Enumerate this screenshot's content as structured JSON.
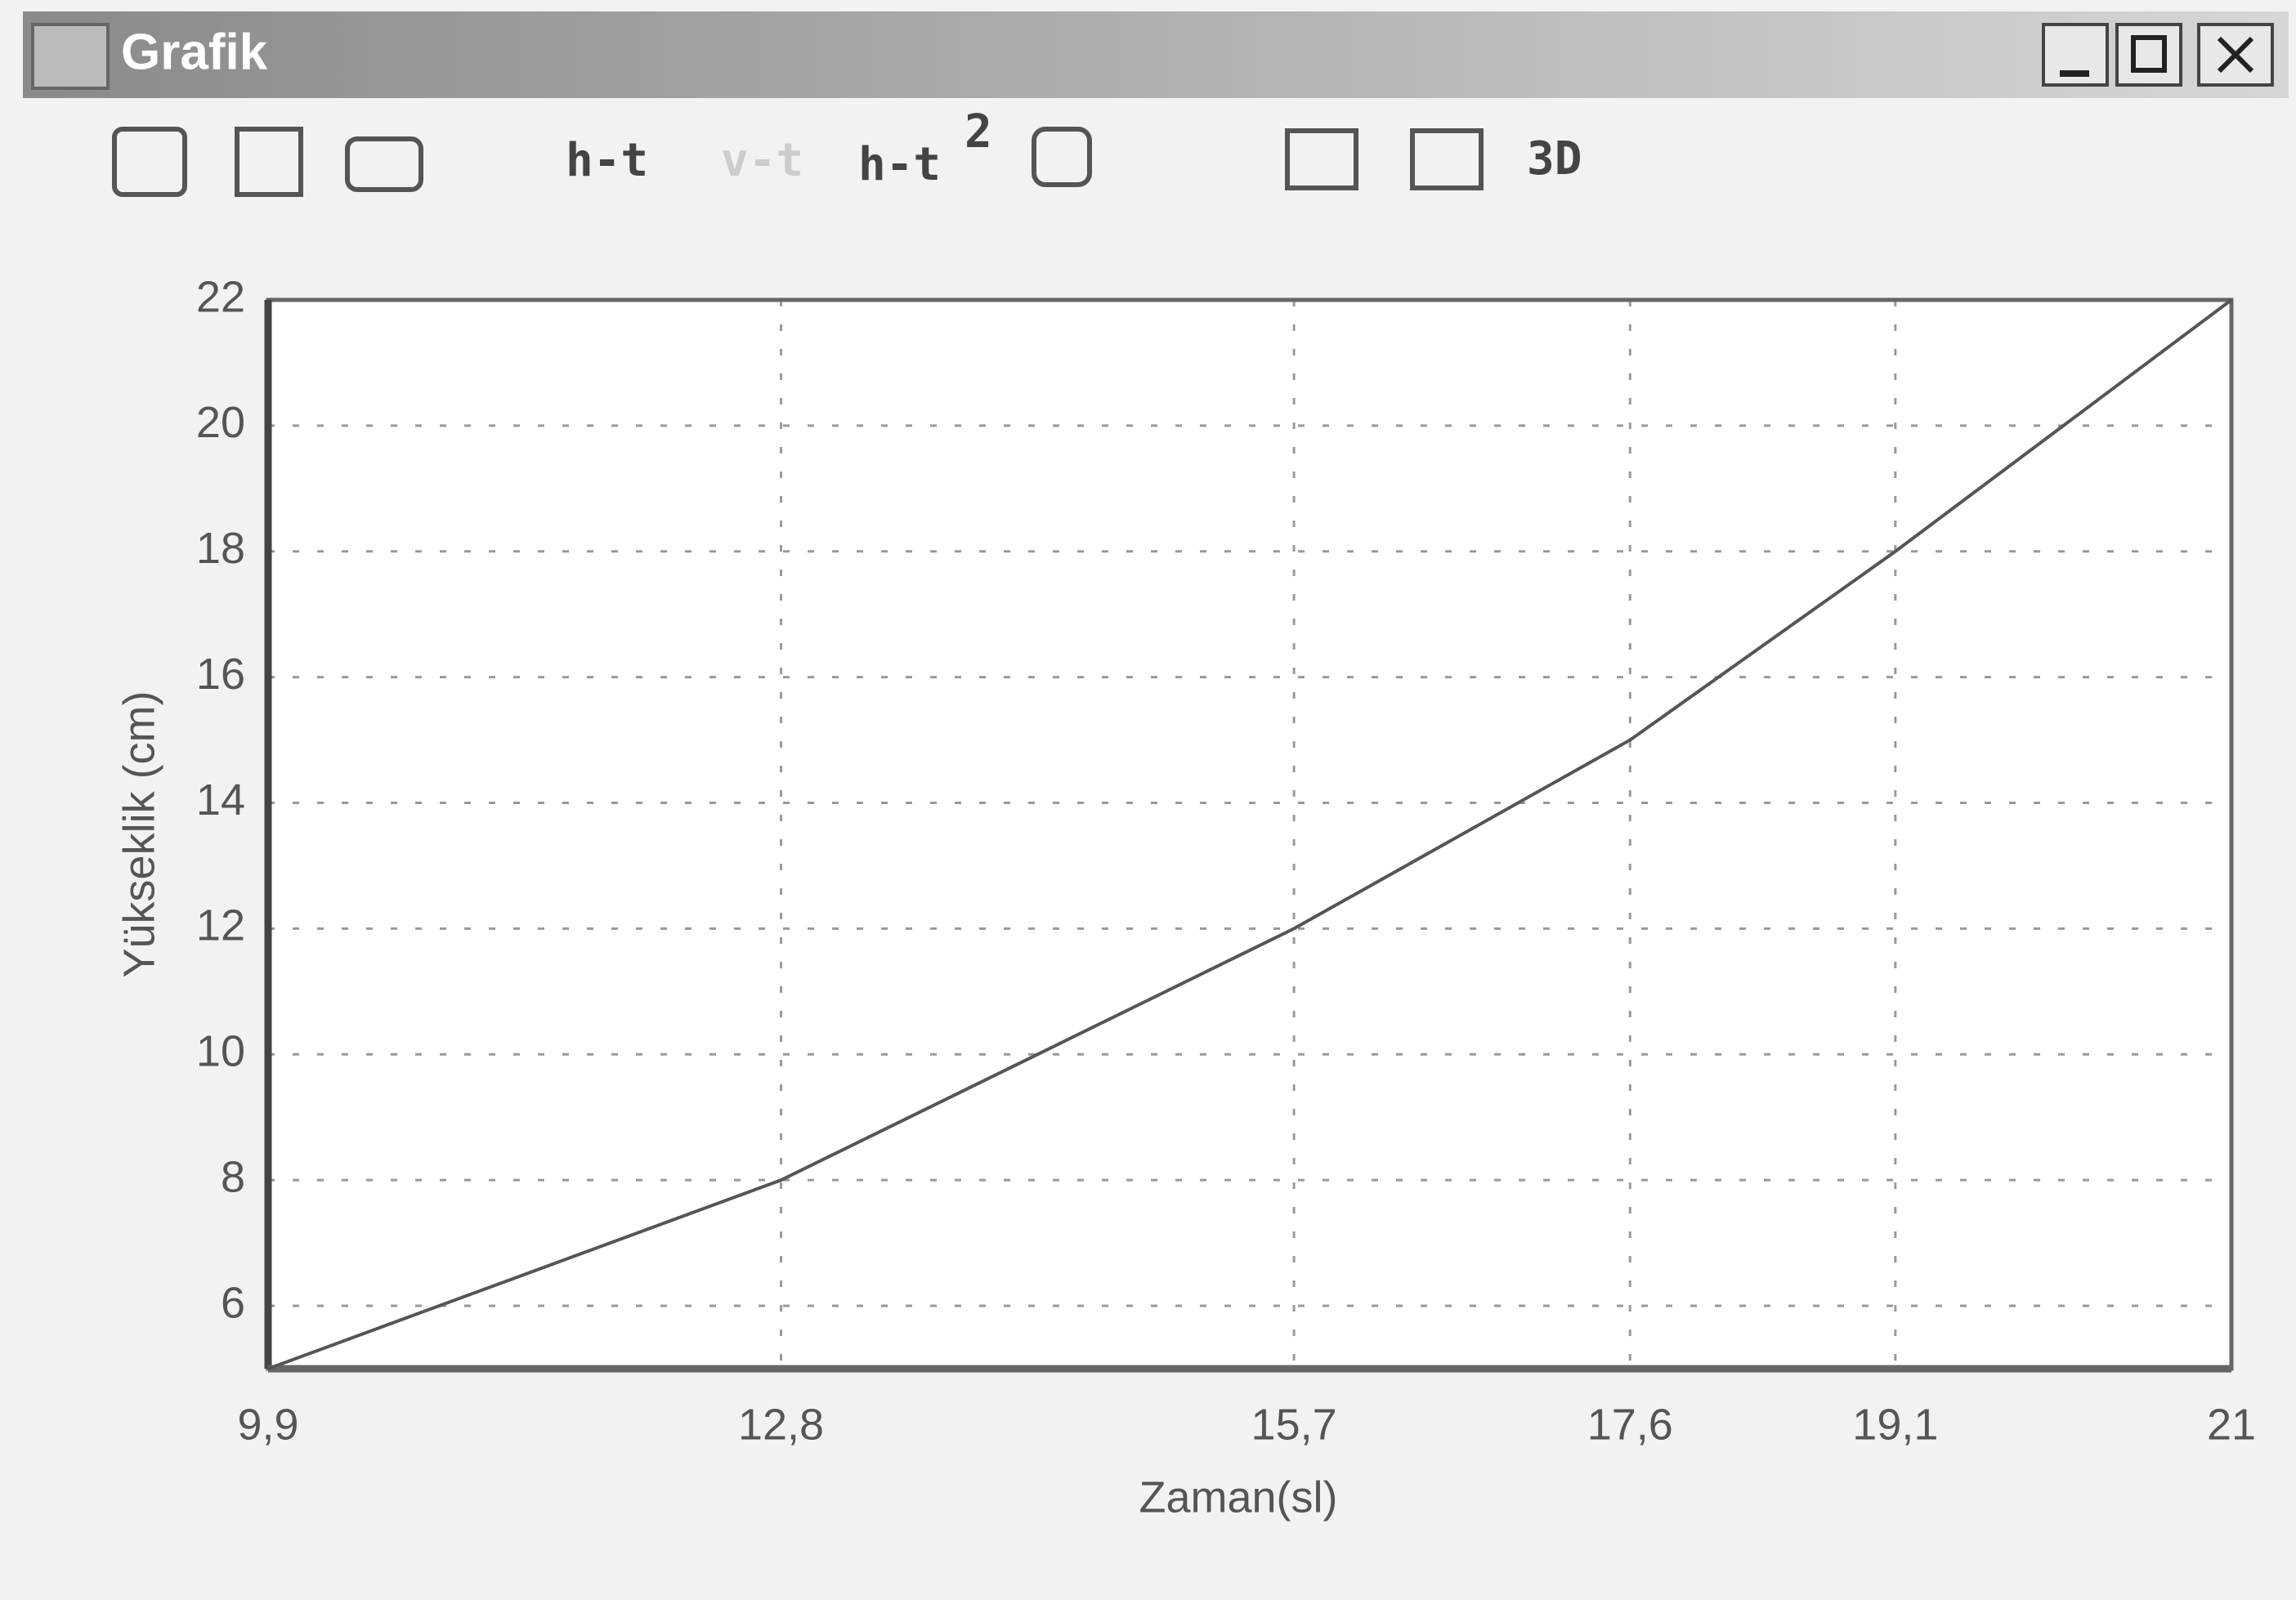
{
  "window": {
    "title": "Grafik"
  },
  "toolbar": {
    "h_t": "h-t",
    "v_t": "v-t",
    "h_t2": {
      "text": "h-t",
      "sup": "2"
    },
    "three_d": "3D"
  },
  "chart_data": {
    "type": "line",
    "x_label": "Zaman(sl)",
    "y_label": "Yükseklik (cm)",
    "x": [
      9.9,
      12.8,
      15.7,
      17.6,
      19.1,
      21
    ],
    "series": [
      {
        "color": "#555555",
        "values": [
          5,
          8,
          12,
          15,
          18,
          22
        ]
      }
    ],
    "xlim": [
      9.9,
      21
    ],
    "xticks": [
      {
        "value": 9.9,
        "label": "9,9"
      },
      {
        "value": 12.8,
        "label": "12,8"
      },
      {
        "value": 15.7,
        "label": "15,7"
      },
      {
        "value": 17.6,
        "label": "17,6"
      },
      {
        "value": 19.1,
        "label": "19,1"
      },
      21
    ],
    "ylim": [
      5,
      22
    ],
    "yticks": [
      6,
      8,
      10,
      12,
      14,
      16,
      18,
      20,
      22
    ],
    "grid": true
  }
}
